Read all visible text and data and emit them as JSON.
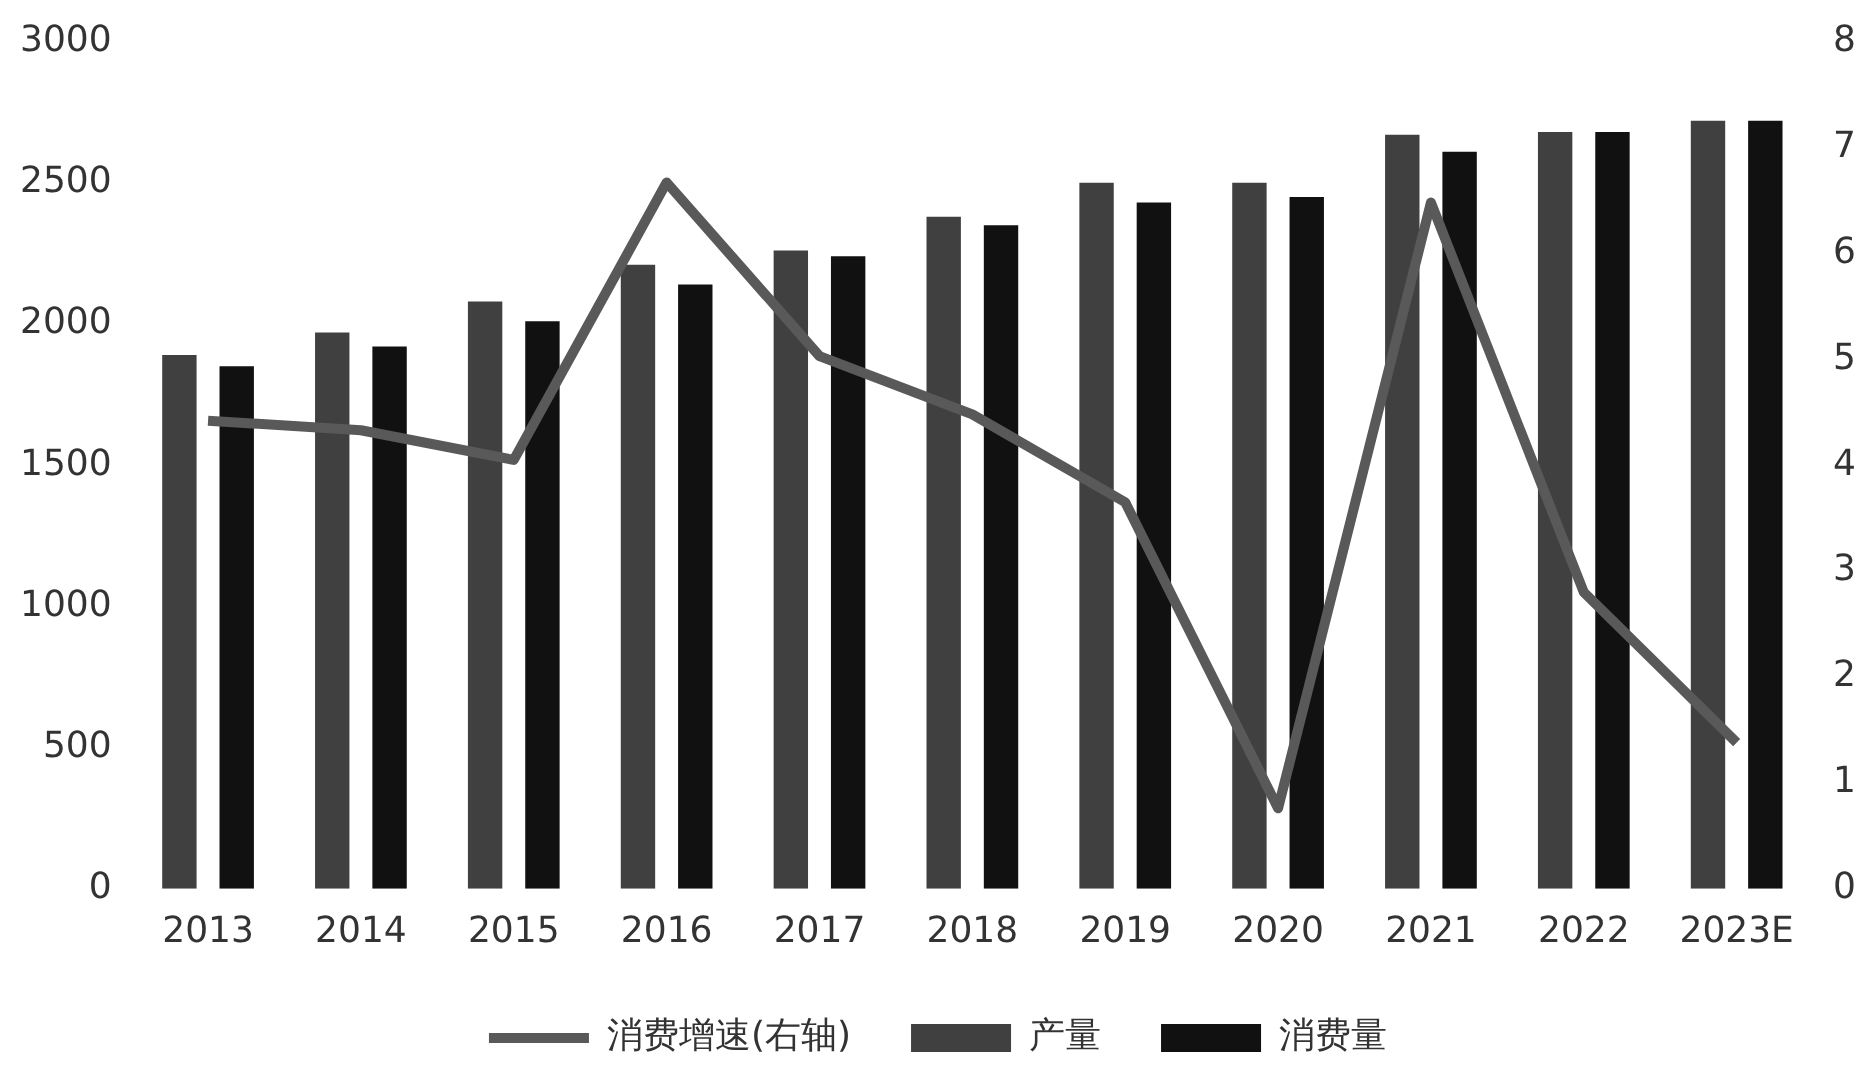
{
  "chart_data": {
    "type": "bar",
    "categories": [
      "2013",
      "2014",
      "2015",
      "2016",
      "2017",
      "2018",
      "2019",
      "2020",
      "2021",
      "2022",
      "2023E"
    ],
    "series": [
      {
        "name": "产量",
        "color": "#404040",
        "values": [
          1890,
          1970,
          2080,
          2210,
          2260,
          2380,
          2500,
          2500,
          2670,
          2680,
          2720
        ]
      },
      {
        "name": "消费量",
        "color": "#111111",
        "values": [
          1850,
          1920,
          2010,
          2140,
          2240,
          2350,
          2430,
          2450,
          2610,
          2680,
          2720
        ]
      },
      {
        "name": "消费增速(右轴)",
        "type": "line",
        "axis": "y2",
        "color": "#595959",
        "values": [
          4.42,
          4.33,
          4.05,
          6.67,
          5.03,
          4.48,
          3.65,
          0.76,
          6.48,
          2.8,
          1.38
        ]
      }
    ],
    "ylim": [
      0,
      3000
    ],
    "yticks": [
      0,
      500,
      1000,
      1500,
      2000,
      2500,
      3000
    ],
    "y2lim": [
      0,
      8
    ],
    "y2ticks": [
      0,
      1,
      2,
      3,
      4,
      5,
      6,
      7,
      8
    ],
    "grid": false,
    "legend": "bottom",
    "marker": "none",
    "line_style": "solid"
  }
}
